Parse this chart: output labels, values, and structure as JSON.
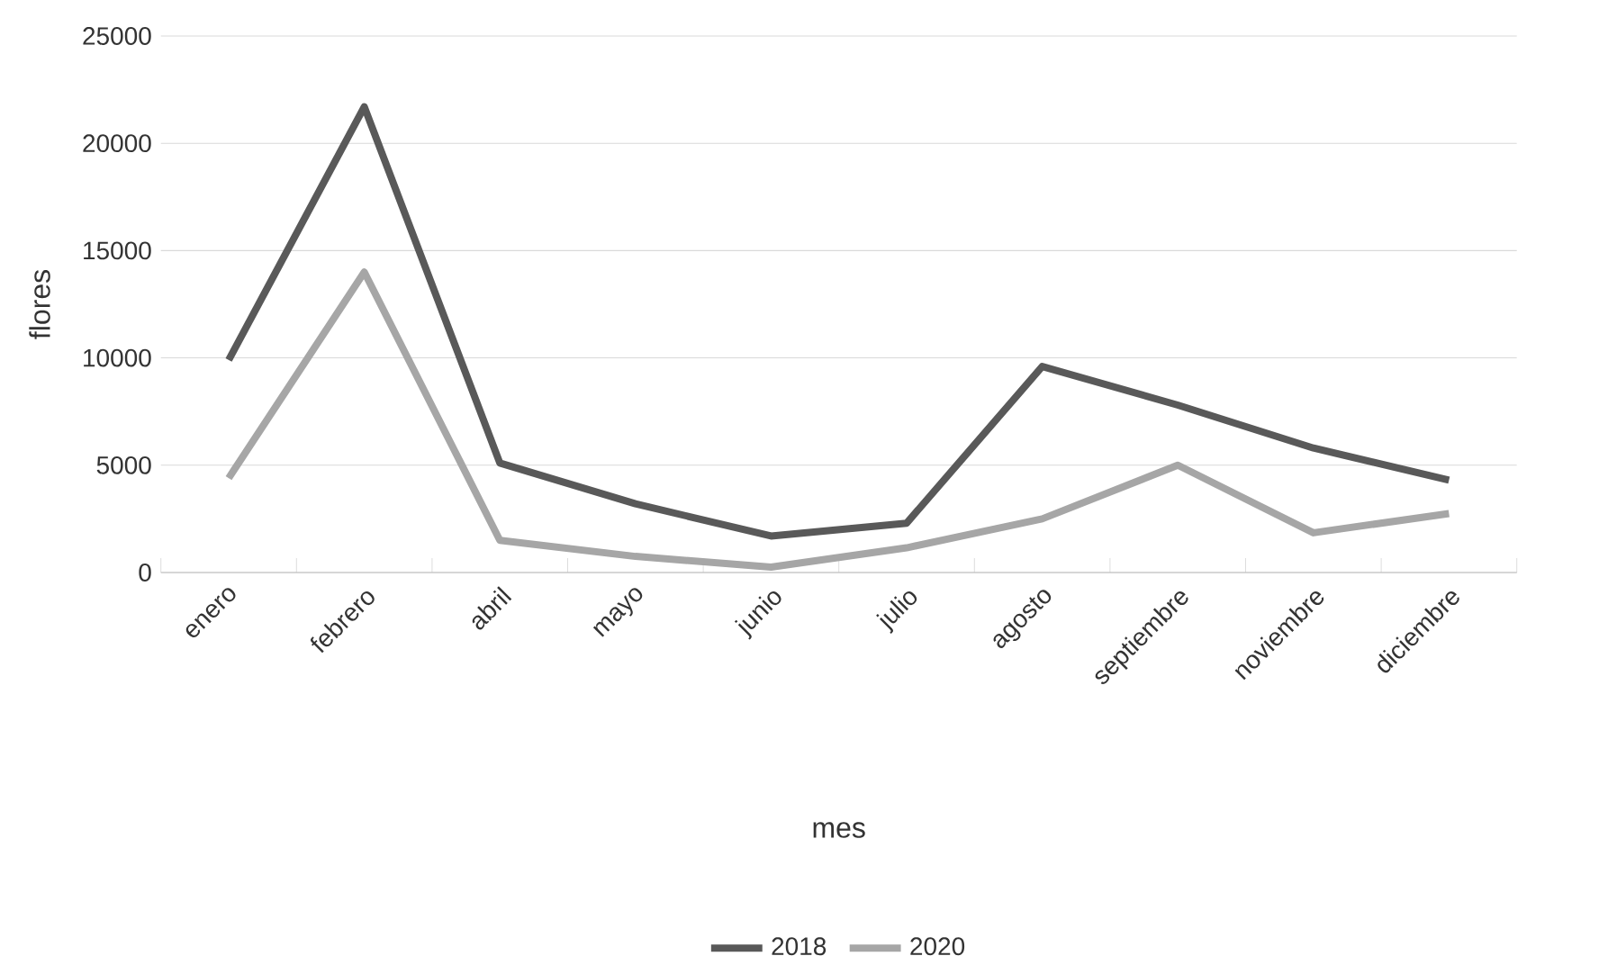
{
  "chart_data": {
    "type": "line",
    "xlabel": "mes",
    "ylabel": "flores",
    "categories": [
      "enero",
      "febrero",
      "abril",
      "mayo",
      "junio",
      "julio",
      "agosto",
      "septiembre",
      "noviembre",
      "diciembre"
    ],
    "series": [
      {
        "name": "2018",
        "color": "#595959",
        "values": [
          9900,
          21700,
          5100,
          3200,
          1700,
          2300,
          9600,
          7800,
          5800,
          4300
        ]
      },
      {
        "name": "2020",
        "color": "#a6a6a6",
        "values": [
          4400,
          14000,
          1500,
          750,
          250,
          1150,
          2500,
          5000,
          1850,
          2750
        ]
      }
    ],
    "ylim": [
      0,
      25000
    ],
    "yticks": [
      0,
      5000,
      10000,
      15000,
      20000,
      25000
    ],
    "grid": "y",
    "legend": "bottom",
    "marker": "none",
    "line_style": "solid"
  }
}
